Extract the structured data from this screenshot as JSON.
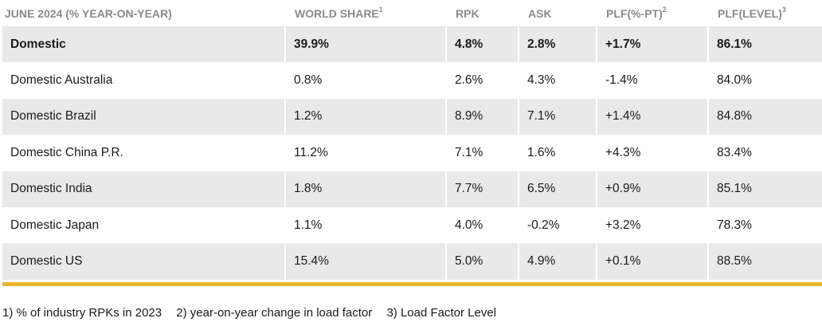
{
  "table": {
    "headers": [
      {
        "label": "JUNE 2024 (% YEAR-ON-YEAR)",
        "sup": ""
      },
      {
        "label": "WORLD SHARE",
        "sup": "1"
      },
      {
        "label": "RPK",
        "sup": ""
      },
      {
        "label": "ASK",
        "sup": ""
      },
      {
        "label": "PLF(%-PT)",
        "sup": "2"
      },
      {
        "label": "PLF(LEVEL)",
        "sup": "3"
      }
    ],
    "rows": [
      [
        "Domestic",
        "39.9%",
        "4.8%",
        "2.8%",
        "+1.7%",
        "86.1%"
      ],
      [
        "Domestic Australia",
        "0.8%",
        "2.6%",
        "4.3%",
        "-1.4%",
        "84.0%"
      ],
      [
        "Domestic Brazil",
        "1.2%",
        "8.9%",
        "7.1%",
        "+1.4%",
        "84.8%"
      ],
      [
        "Domestic China P.R.",
        "11.2%",
        "7.1%",
        "1.6%",
        "+4.3%",
        "83.4%"
      ],
      [
        "Domestic India",
        "1.8%",
        "7.7%",
        "6.5%",
        "+0.9%",
        "85.1%"
      ],
      [
        "Domestic Japan",
        "1.1%",
        "4.0%",
        "-0.2%",
        "+3.2%",
        "78.3%"
      ],
      [
        "Domestic US",
        "15.4%",
        "5.0%",
        "4.9%",
        "+0.1%",
        "88.5%"
      ]
    ]
  },
  "footnotes": [
    "1) % of industry RPKs in 2023",
    "2) year-on-year change in load factor",
    "3) Load Factor Level"
  ],
  "colors": {
    "header_text": "#8a8a8a",
    "row_shade": "#e9e9e9",
    "accent_rule": "#e9b82a"
  }
}
